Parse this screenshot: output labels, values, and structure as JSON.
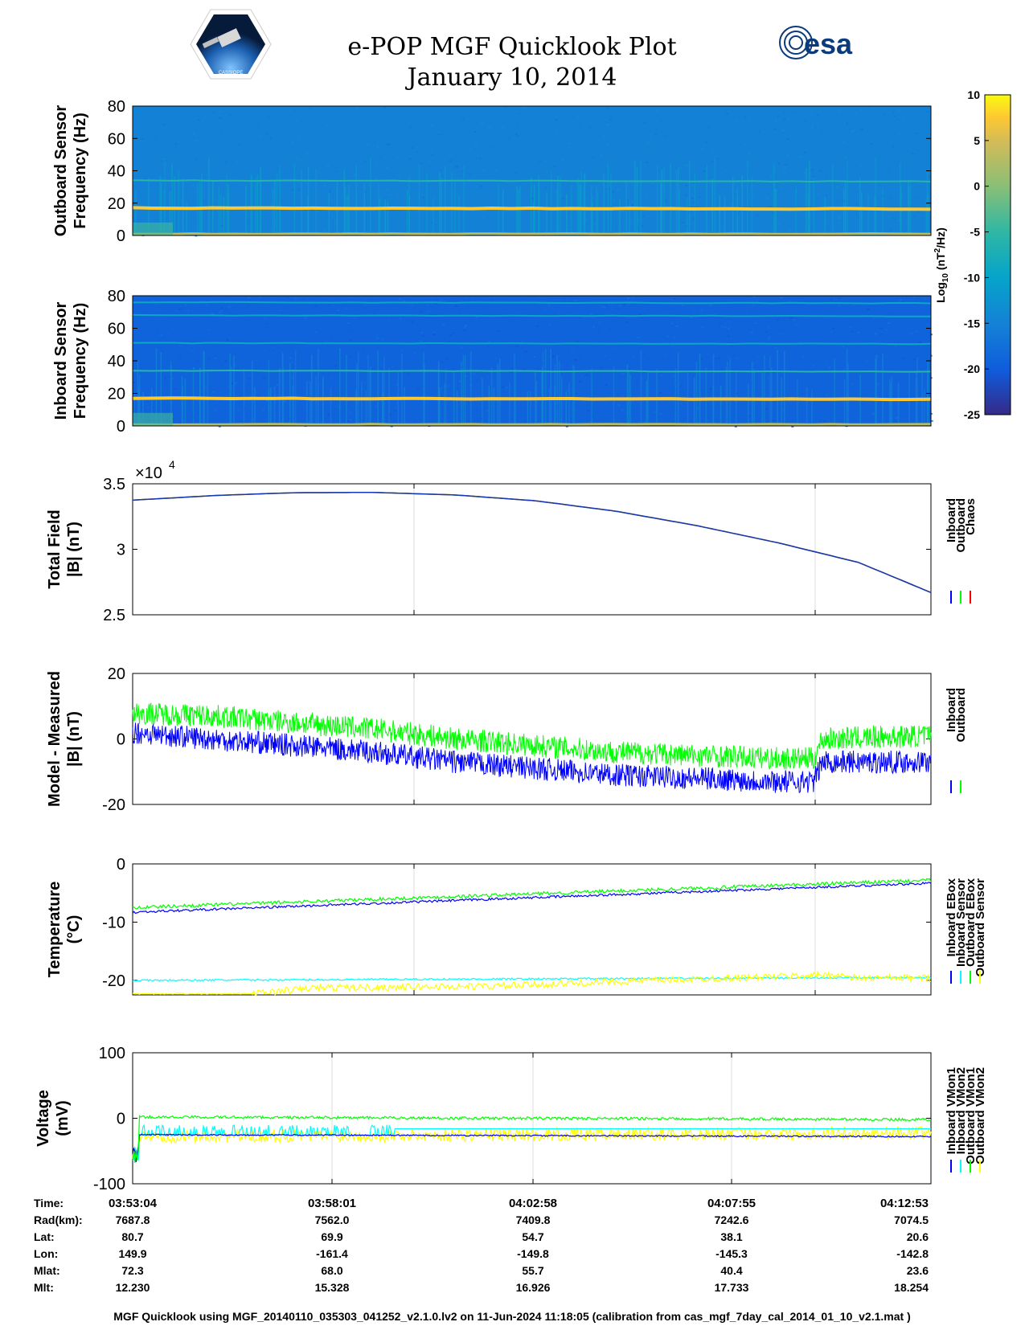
{
  "header": {
    "title": "e-POP MGF Quicklook Plot",
    "date": "January 10, 2014",
    "esa_logo_text": "esa",
    "mission_logo_text": "CASSIOPE"
  },
  "colorbar": {
    "label": "Log10 (nT²/Hz)",
    "ticks": [
      10,
      5,
      0,
      -5,
      -10,
      -15,
      -20,
      -25
    ],
    "range": [
      -25,
      10
    ]
  },
  "chart_data": [
    {
      "type": "heatmap",
      "ylabel": "Outboard Sensor Frequency (Hz)",
      "ylim": [
        0,
        80
      ],
      "yticks": [
        0,
        20,
        40,
        60,
        80
      ],
      "lines_hz": [
        1,
        17,
        34
      ],
      "background_log_power": -15
    },
    {
      "type": "heatmap",
      "ylabel": "Inboard Sensor Frequency (Hz)",
      "ylim": [
        0,
        80
      ],
      "yticks": [
        0,
        20,
        40,
        60,
        80
      ],
      "lines_hz": [
        1,
        17,
        34,
        51,
        68,
        76
      ],
      "background_log_power": -19
    },
    {
      "type": "line",
      "ylabel": "Total Field |B| (nT)",
      "multiplier": "×10",
      "exponent": "4",
      "ylim": [
        2.5,
        3.5
      ],
      "yticks": [
        2.5,
        3,
        3.5
      ],
      "x": [
        0,
        2,
        4,
        6,
        8,
        10,
        12,
        14,
        16,
        18,
        19.8
      ],
      "series": [
        {
          "name": "Inboard",
          "color": "#0000ff",
          "values": [
            3.375,
            3.41,
            3.432,
            3.434,
            3.415,
            3.37,
            3.29,
            3.18,
            3.05,
            2.9,
            2.67
          ]
        },
        {
          "name": "Outboard",
          "color": "#00ff00",
          "values": [
            3.375,
            3.41,
            3.432,
            3.434,
            3.415,
            3.37,
            3.29,
            3.18,
            3.05,
            2.9,
            2.67
          ]
        },
        {
          "name": "Chaos",
          "color": "#ff0000",
          "values": [
            3.375,
            3.41,
            3.432,
            3.434,
            3.415,
            3.37,
            3.29,
            3.18,
            3.05,
            2.9,
            2.67
          ]
        }
      ]
    },
    {
      "type": "line",
      "ylabel": "Model - Measured |B| (nT)",
      "ylim": [
        -20,
        20
      ],
      "yticks": [
        -20,
        0,
        20
      ],
      "series": [
        {
          "name": "Outboard",
          "color": "#00ff00",
          "x": [
            0,
            2,
            4,
            6,
            8,
            10,
            12,
            14,
            16,
            16.9,
            17.1,
            19.8
          ],
          "center": [
            8,
            7,
            5,
            3,
            0,
            -2,
            -4,
            -5,
            -6,
            -6,
            0,
            1
          ],
          "spread": 3.5
        },
        {
          "name": "Inboard",
          "color": "#0000ff",
          "x": [
            0,
            2,
            4,
            6,
            8,
            10,
            12,
            14,
            16,
            16.9,
            17.1,
            19.8
          ],
          "center": [
            2,
            0,
            -2,
            -4,
            -7,
            -9,
            -11,
            -12,
            -13,
            -13,
            -7,
            -7
          ],
          "spread": 3.5
        }
      ]
    },
    {
      "type": "line",
      "ylabel": "Temperature (°C)",
      "ylim": [
        -22.5,
        0
      ],
      "yticks": [
        -20,
        -10,
        0
      ],
      "x": [
        0,
        19.8
      ],
      "series": [
        {
          "name": "Inboard EBox",
          "color": "#0000ff",
          "values": [
            -8.3,
            -3.3
          ],
          "noise": 0.2
        },
        {
          "name": "Inboard Sensor",
          "color": "#00ffff",
          "values": [
            -20,
            -19.5
          ],
          "noise": 0.15
        },
        {
          "name": "Outboard EBox",
          "color": "#00ff00",
          "values": [
            -7.5,
            -2.8
          ],
          "noise": 0.3
        },
        {
          "name": "Outboard Sensor",
          "color": "#ffff00",
          "x": [
            0,
            3,
            4.5,
            9,
            13,
            17.5,
            17.8,
            19.8
          ],
          "values": [
            -22.3,
            -22.3,
            -21.3,
            -21,
            -20,
            -19,
            -19.6,
            -19.6
          ],
          "noise": 0.6
        }
      ]
    },
    {
      "type": "line",
      "ylabel": "Voltage (mV)",
      "ylim": [
        -100,
        100
      ],
      "yticks": [
        -100,
        0,
        100
      ],
      "x": [
        0,
        19.8
      ],
      "series": [
        {
          "name": "Inboard VMon1",
          "color": "#0000ff",
          "values": [
            -25,
            -28
          ],
          "noise": 1
        },
        {
          "name": "Inboard VMon2",
          "color": "#00ffff",
          "values": [
            -10,
            -10
          ],
          "noise": 6
        },
        {
          "name": "Outboard VMon1",
          "color": "#00ff00",
          "values": [
            2,
            -2
          ],
          "noise": 2
        },
        {
          "name": "Outboard VMon2",
          "color": "#ffff00",
          "values": [
            -28,
            -22
          ],
          "noise": 10
        }
      ]
    }
  ],
  "ephemeris": {
    "labels": [
      "Time:",
      "Rad(km):",
      "Lat:",
      "Lon:",
      "Mlat:",
      "Mlt:"
    ],
    "columns": [
      [
        "03:53:04",
        "7687.8",
        "80.7",
        "149.9",
        "72.3",
        "12.230"
      ],
      [
        "03:58:01",
        "7562.0",
        "69.9",
        "-161.4",
        "68.0",
        "15.328"
      ],
      [
        "04:02:58",
        "7409.8",
        "54.7",
        "-149.8",
        "55.7",
        "16.926"
      ],
      [
        "04:07:55",
        "7242.6",
        "38.1",
        "-145.3",
        "40.4",
        "17.733"
      ],
      [
        "04:12:53",
        "7074.5",
        "20.6",
        "-142.8",
        "23.6",
        "18.254"
      ]
    ]
  },
  "footer": "MGF Quicklook using MGF_20140110_035303_041252_v2.1.0.lv2 on 11-Jun-2024 11:18:05 (calibration from cas_mgf_7day_cal_2014_01_10_v2.1.mat )"
}
